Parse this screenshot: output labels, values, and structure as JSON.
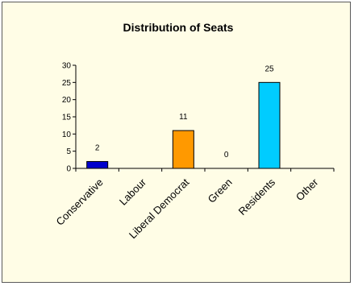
{
  "chart_data": {
    "type": "bar",
    "title": "Distribution of Seats",
    "xlabel": "",
    "ylabel": "",
    "categories": [
      "Conservative",
      "Labour",
      "Liberal Democrat",
      "Green",
      "Residents",
      "Other"
    ],
    "values": [
      2,
      null,
      11,
      0,
      25,
      null
    ],
    "data_labels": [
      "2",
      "",
      "11",
      "0",
      "25",
      ""
    ],
    "colors": [
      "#0000cc",
      "#ffffff",
      "#ff9900",
      "#ffffff",
      "#00ccff",
      "#ffffff"
    ],
    "ylim": [
      0,
      30
    ],
    "yticks": [
      0,
      5,
      10,
      15,
      20,
      25,
      30
    ],
    "grid": false,
    "legend": "none",
    "background": "#fffde6"
  }
}
